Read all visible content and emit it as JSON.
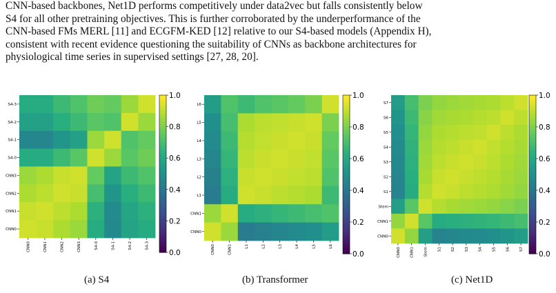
{
  "paragraph": {
    "lines": [
      "CNN-based backbones, Net1D performs competitively under data2vec but falls consistently below",
      "S4 for all other pretraining objectives. This is further corroborated by the underperformance of the",
      "CNN-based FMs MERL [11] and ECGFM-KED [12] relative to our S4-based models (Appendix H),",
      "consistent with recent evidence questioning the suitability of CNNs as backbone architectures for",
      "physiological time series in supervised settings [27, 28, 20]."
    ]
  },
  "colorbar": {
    "ticks": [
      "0.0",
      "0.2",
      "0.4",
      "0.6",
      "0.8",
      "1.0"
    ],
    "colormap": "viridis"
  },
  "chart_data": [
    {
      "type": "heatmap",
      "caption": "(a) S4",
      "x_labels": [
        "CNN0",
        "CNN1",
        "CNN2",
        "CNN3",
        "S4-0",
        "S4-1",
        "S4-2",
        "S4-3"
      ],
      "y_labels_top_to_bottom": [
        "S4-3",
        "S4-2",
        "S4-1",
        "S4-0",
        "CNN3",
        "CNN2",
        "CNN1",
        "CNN0"
      ],
      "zlim": [
        0,
        1
      ],
      "matrix": [
        [
          0.62,
          0.62,
          0.68,
          0.72,
          0.78,
          0.76,
          0.85,
          0.93
        ],
        [
          0.57,
          0.57,
          0.63,
          0.68,
          0.74,
          0.72,
          0.93,
          0.85
        ],
        [
          0.46,
          0.46,
          0.52,
          0.57,
          0.85,
          0.93,
          0.72,
          0.76
        ],
        [
          0.62,
          0.62,
          0.68,
          0.74,
          0.93,
          0.85,
          0.74,
          0.78
        ],
        [
          0.85,
          0.88,
          0.92,
          0.93,
          0.76,
          0.58,
          0.68,
          0.72
        ],
        [
          0.88,
          0.9,
          0.93,
          0.92,
          0.7,
          0.52,
          0.63,
          0.68
        ],
        [
          0.92,
          0.93,
          0.9,
          0.88,
          0.64,
          0.48,
          0.59,
          0.64
        ],
        [
          0.93,
          0.92,
          0.88,
          0.85,
          0.62,
          0.47,
          0.58,
          0.62
        ]
      ]
    },
    {
      "type": "heatmap",
      "caption": "(b) Transformer",
      "x_labels": [
        "CNN0",
        "CNN1",
        "L1",
        "L2",
        "L3",
        "L4",
        "L5",
        "L6"
      ],
      "y_labels_top_to_bottom": [
        "L6",
        "L5",
        "L4",
        "L3",
        "L2",
        "L1",
        "CNN1",
        "CNN0"
      ],
      "zlim": [
        0,
        1
      ],
      "matrix": [
        [
          0.55,
          0.72,
          0.68,
          0.72,
          0.74,
          0.76,
          0.8,
          0.93
        ],
        [
          0.5,
          0.7,
          0.88,
          0.9,
          0.91,
          0.92,
          0.93,
          0.8
        ],
        [
          0.48,
          0.68,
          0.89,
          0.91,
          0.92,
          0.93,
          0.92,
          0.76
        ],
        [
          0.46,
          0.66,
          0.9,
          0.92,
          0.93,
          0.92,
          0.91,
          0.74
        ],
        [
          0.44,
          0.64,
          0.92,
          0.93,
          0.92,
          0.91,
          0.9,
          0.72
        ],
        [
          0.42,
          0.62,
          0.93,
          0.92,
          0.9,
          0.89,
          0.88,
          0.68
        ],
        [
          0.85,
          0.93,
          0.62,
          0.64,
          0.66,
          0.68,
          0.7,
          0.72
        ],
        [
          0.93,
          0.85,
          0.42,
          0.44,
          0.46,
          0.48,
          0.5,
          0.55
        ]
      ]
    },
    {
      "type": "heatmap",
      "caption": "(c) Net1D",
      "x_labels": [
        "CNN0",
        "CNN1",
        "Stem",
        "S1",
        "S2",
        "S3",
        "S4",
        "S5",
        "S6",
        "S7"
      ],
      "y_labels_top_to_bottom": [
        "S7",
        "S6",
        "S5",
        "S4",
        "S3",
        "S2",
        "S1",
        "Stem",
        "CNN1",
        "CNN0"
      ],
      "zlim": [
        0,
        1
      ],
      "matrix": [
        [
          0.55,
          0.7,
          0.8,
          0.84,
          0.85,
          0.86,
          0.87,
          0.88,
          0.9,
          0.93
        ],
        [
          0.52,
          0.68,
          0.82,
          0.86,
          0.87,
          0.88,
          0.89,
          0.9,
          0.93,
          0.9
        ],
        [
          0.5,
          0.66,
          0.84,
          0.88,
          0.89,
          0.9,
          0.91,
          0.93,
          0.9,
          0.88
        ],
        [
          0.48,
          0.65,
          0.85,
          0.89,
          0.9,
          0.92,
          0.93,
          0.91,
          0.89,
          0.87
        ],
        [
          0.47,
          0.64,
          0.86,
          0.9,
          0.92,
          0.93,
          0.92,
          0.9,
          0.88,
          0.86
        ],
        [
          0.46,
          0.63,
          0.87,
          0.92,
          0.93,
          0.92,
          0.9,
          0.89,
          0.87,
          0.85
        ],
        [
          0.45,
          0.62,
          0.89,
          0.93,
          0.92,
          0.9,
          0.89,
          0.88,
          0.86,
          0.84
        ],
        [
          0.56,
          0.74,
          0.93,
          0.89,
          0.87,
          0.86,
          0.85,
          0.84,
          0.82,
          0.8
        ],
        [
          0.84,
          0.93,
          0.74,
          0.62,
          0.63,
          0.64,
          0.65,
          0.66,
          0.68,
          0.7
        ],
        [
          0.93,
          0.84,
          0.56,
          0.45,
          0.46,
          0.47,
          0.48,
          0.5,
          0.52,
          0.55
        ]
      ]
    }
  ]
}
